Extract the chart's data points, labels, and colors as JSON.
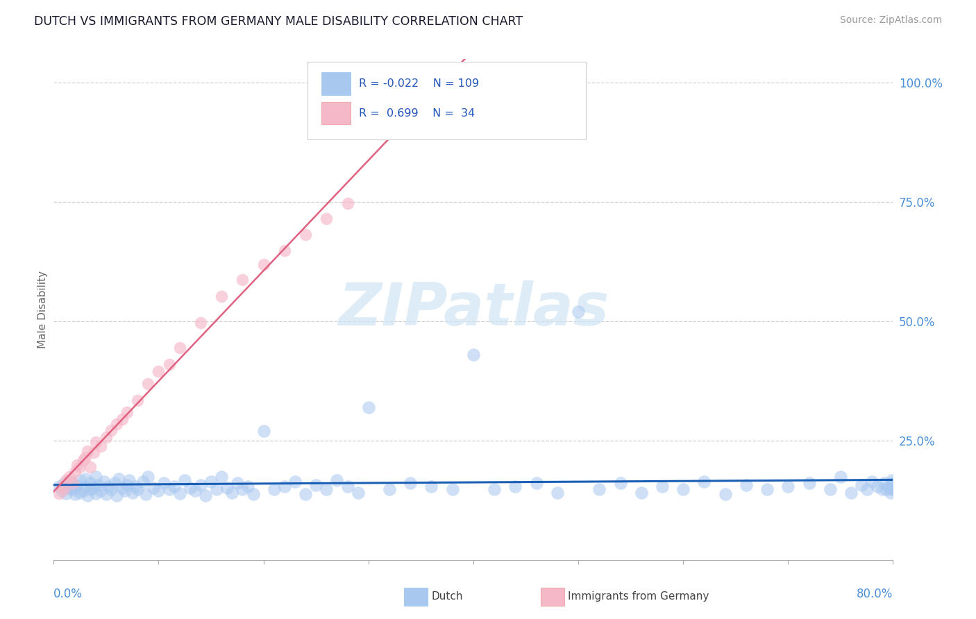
{
  "title": "DUTCH VS IMMIGRANTS FROM GERMANY MALE DISABILITY CORRELATION CHART",
  "source": "Source: ZipAtlas.com",
  "ylabel": "Male Disability",
  "y_ticks": [
    0.0,
    0.25,
    0.5,
    0.75,
    1.0
  ],
  "y_tick_labels": [
    "",
    "25.0%",
    "50.0%",
    "75.0%",
    "100.0%"
  ],
  "x_range": [
    0.0,
    0.8
  ],
  "y_range": [
    0.0,
    1.05
  ],
  "dutch_R": -0.022,
  "dutch_N": 109,
  "immigrants_R": 0.699,
  "immigrants_N": 34,
  "dutch_color": "#a8c8f0",
  "dutch_line_color": "#1a5fb4",
  "immigrants_color": "#f5b8c8",
  "immigrants_line_color": "#e06080",
  "title_color": "#1a1a2e",
  "axis_label_color": "#4a90d9",
  "background_color": "#ffffff",
  "grid_color": "#d0d0d0",
  "watermark_color": "#d0e4f5",
  "legend_border": "#cccccc",
  "dutch_x": [
    0.005,
    0.008,
    0.01,
    0.012,
    0.015,
    0.015,
    0.018,
    0.02,
    0.02,
    0.022,
    0.025,
    0.025,
    0.028,
    0.03,
    0.03,
    0.032,
    0.035,
    0.035,
    0.038,
    0.04,
    0.04,
    0.042,
    0.045,
    0.048,
    0.05,
    0.052,
    0.055,
    0.058,
    0.06,
    0.062,
    0.065,
    0.068,
    0.07,
    0.072,
    0.075,
    0.078,
    0.08,
    0.085,
    0.088,
    0.09,
    0.095,
    0.1,
    0.105,
    0.11,
    0.115,
    0.12,
    0.125,
    0.13,
    0.135,
    0.14,
    0.145,
    0.15,
    0.155,
    0.16,
    0.165,
    0.17,
    0.175,
    0.18,
    0.185,
    0.19,
    0.2,
    0.21,
    0.22,
    0.23,
    0.24,
    0.25,
    0.26,
    0.27,
    0.28,
    0.29,
    0.3,
    0.32,
    0.34,
    0.36,
    0.38,
    0.4,
    0.42,
    0.44,
    0.46,
    0.48,
    0.5,
    0.52,
    0.54,
    0.56,
    0.58,
    0.6,
    0.62,
    0.64,
    0.66,
    0.68,
    0.7,
    0.72,
    0.74,
    0.75,
    0.76,
    0.77,
    0.775,
    0.78,
    0.785,
    0.79,
    0.792,
    0.794,
    0.796,
    0.798,
    0.799,
    0.799,
    0.8,
    0.8,
    0.8
  ],
  "dutch_y": [
    0.155,
    0.145,
    0.16,
    0.14,
    0.15,
    0.165,
    0.148,
    0.152,
    0.138,
    0.158,
    0.142,
    0.168,
    0.145,
    0.155,
    0.17,
    0.135,
    0.148,
    0.162,
    0.152,
    0.14,
    0.175,
    0.158,
    0.145,
    0.165,
    0.138,
    0.155,
    0.148,
    0.162,
    0.135,
    0.17,
    0.152,
    0.145,
    0.158,
    0.168,
    0.142,
    0.155,
    0.148,
    0.165,
    0.138,
    0.175,
    0.152,
    0.145,
    0.162,
    0.148,
    0.155,
    0.14,
    0.168,
    0.152,
    0.145,
    0.158,
    0.135,
    0.165,
    0.148,
    0.175,
    0.152,
    0.142,
    0.162,
    0.148,
    0.155,
    0.138,
    0.27,
    0.148,
    0.155,
    0.165,
    0.138,
    0.158,
    0.148,
    0.168,
    0.155,
    0.142,
    0.32,
    0.148,
    0.162,
    0.155,
    0.148,
    0.43,
    0.148,
    0.155,
    0.162,
    0.142,
    0.52,
    0.148,
    0.162,
    0.142,
    0.155,
    0.148,
    0.165,
    0.138,
    0.158,
    0.148,
    0.155,
    0.162,
    0.148,
    0.175,
    0.142,
    0.158,
    0.148,
    0.165,
    0.155,
    0.148,
    0.162,
    0.148,
    0.155,
    0.142,
    0.168,
    0.148,
    0.155,
    0.162,
    0.148
  ],
  "imm_x": [
    0.005,
    0.008,
    0.01,
    0.012,
    0.015,
    0.018,
    0.02,
    0.022,
    0.025,
    0.028,
    0.03,
    0.032,
    0.035,
    0.038,
    0.04,
    0.045,
    0.05,
    0.055,
    0.06,
    0.065,
    0.07,
    0.08,
    0.09,
    0.1,
    0.11,
    0.12,
    0.14,
    0.16,
    0.18,
    0.2,
    0.22,
    0.24,
    0.26,
    0.28
  ],
  "imm_y": [
    0.14,
    0.155,
    0.148,
    0.168,
    0.175,
    0.162,
    0.185,
    0.2,
    0.195,
    0.21,
    0.215,
    0.228,
    0.195,
    0.225,
    0.248,
    0.238,
    0.258,
    0.272,
    0.285,
    0.295,
    0.31,
    0.335,
    0.37,
    0.395,
    0.41,
    0.445,
    0.498,
    0.552,
    0.588,
    0.62,
    0.648,
    0.682,
    0.715,
    0.748
  ]
}
